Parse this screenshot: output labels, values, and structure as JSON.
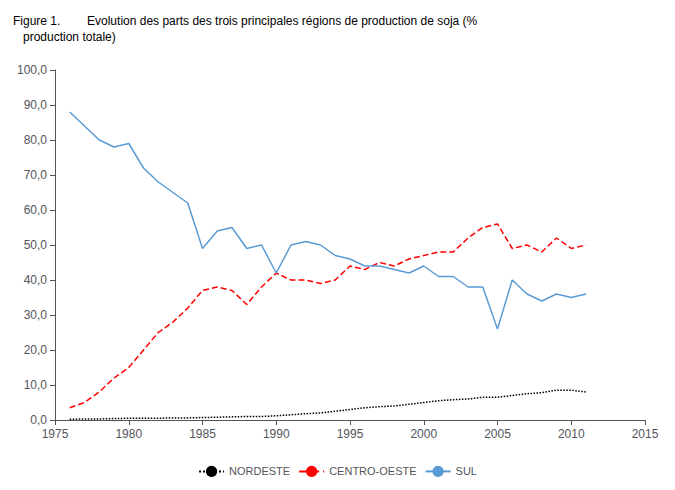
{
  "chart_data": {
    "type": "line",
    "title": "Figure 1.        Evolution des parts des trois principales régions de production de soja (%\n   production totale)",
    "x": [
      1976,
      1977,
      1978,
      1979,
      1980,
      1981,
      1982,
      1983,
      1984,
      1985,
      1986,
      1987,
      1988,
      1989,
      1990,
      1991,
      1992,
      1993,
      1994,
      1995,
      1996,
      1997,
      1998,
      1999,
      2000,
      2001,
      2002,
      2003,
      2004,
      2005,
      2006,
      2007,
      2008,
      2009,
      2010,
      2011
    ],
    "series": [
      {
        "name": "NORDESTE",
        "color": "#000000",
        "line_style": "dotted",
        "values": [
          0.2,
          0.3,
          0.3,
          0.4,
          0.5,
          0.5,
          0.5,
          0.6,
          0.6,
          0.7,
          0.8,
          0.9,
          1.0,
          1.0,
          1.2,
          1.5,
          1.8,
          2.0,
          2.5,
          3.0,
          3.5,
          3.8,
          4.0,
          4.5,
          5.0,
          5.5,
          5.8,
          6.0,
          6.5,
          6.5,
          7.0,
          7.5,
          7.8,
          8.5,
          8.5,
          8.0
        ]
      },
      {
        "name": "CENTRO-OESTE",
        "color": "#ff0000",
        "line_style": "dashed",
        "values": [
          3.5,
          5.0,
          8.0,
          12.0,
          15.0,
          20.0,
          25.0,
          28.0,
          32.0,
          37.0,
          38.0,
          37.0,
          33.0,
          38.0,
          42.0,
          40.0,
          40.0,
          39.0,
          40.0,
          44.0,
          43.0,
          45.0,
          44.0,
          46.0,
          47.0,
          48.0,
          48.0,
          52.0,
          55.0,
          56.0,
          49.0,
          50.0,
          48.0,
          52.0,
          49.0,
          50.0
        ]
      },
      {
        "name": "SUL",
        "color": "#5b9bd5",
        "line_style": "solid",
        "values": [
          88.0,
          84.0,
          80.0,
          78.0,
          79.0,
          72.0,
          68.0,
          65.0,
          62.0,
          49.0,
          54.0,
          55.0,
          49.0,
          50.0,
          42.0,
          50.0,
          51.0,
          50.0,
          47.0,
          46.0,
          44.0,
          44.0,
          43.0,
          42.0,
          44.0,
          41.0,
          41.0,
          38.0,
          38.0,
          26.0,
          40.0,
          36.0,
          34.0,
          36.0,
          35.0,
          36.0
        ]
      }
    ],
    "xlim": [
      1975,
      2015
    ],
    "xticks": [
      1975,
      1980,
      1985,
      1990,
      1995,
      2000,
      2005,
      2010,
      2015
    ],
    "ylim": [
      0,
      100
    ],
    "yticks": [
      {
        "value": 0,
        "label": "0,0"
      },
      {
        "value": 10,
        "label": "10,0"
      },
      {
        "value": 20,
        "label": "20,0"
      },
      {
        "value": 30,
        "label": "30,0"
      },
      {
        "value": 40,
        "label": "40,0"
      },
      {
        "value": 50,
        "label": "50,0"
      },
      {
        "value": 60,
        "label": "60,0"
      },
      {
        "value": 70,
        "label": "70,0"
      },
      {
        "value": 80,
        "label": "80,0"
      },
      {
        "value": 90,
        "label": "90,0"
      },
      {
        "value": 100,
        "label": "100,0"
      }
    ],
    "grid": false,
    "legend": "bottom"
  }
}
